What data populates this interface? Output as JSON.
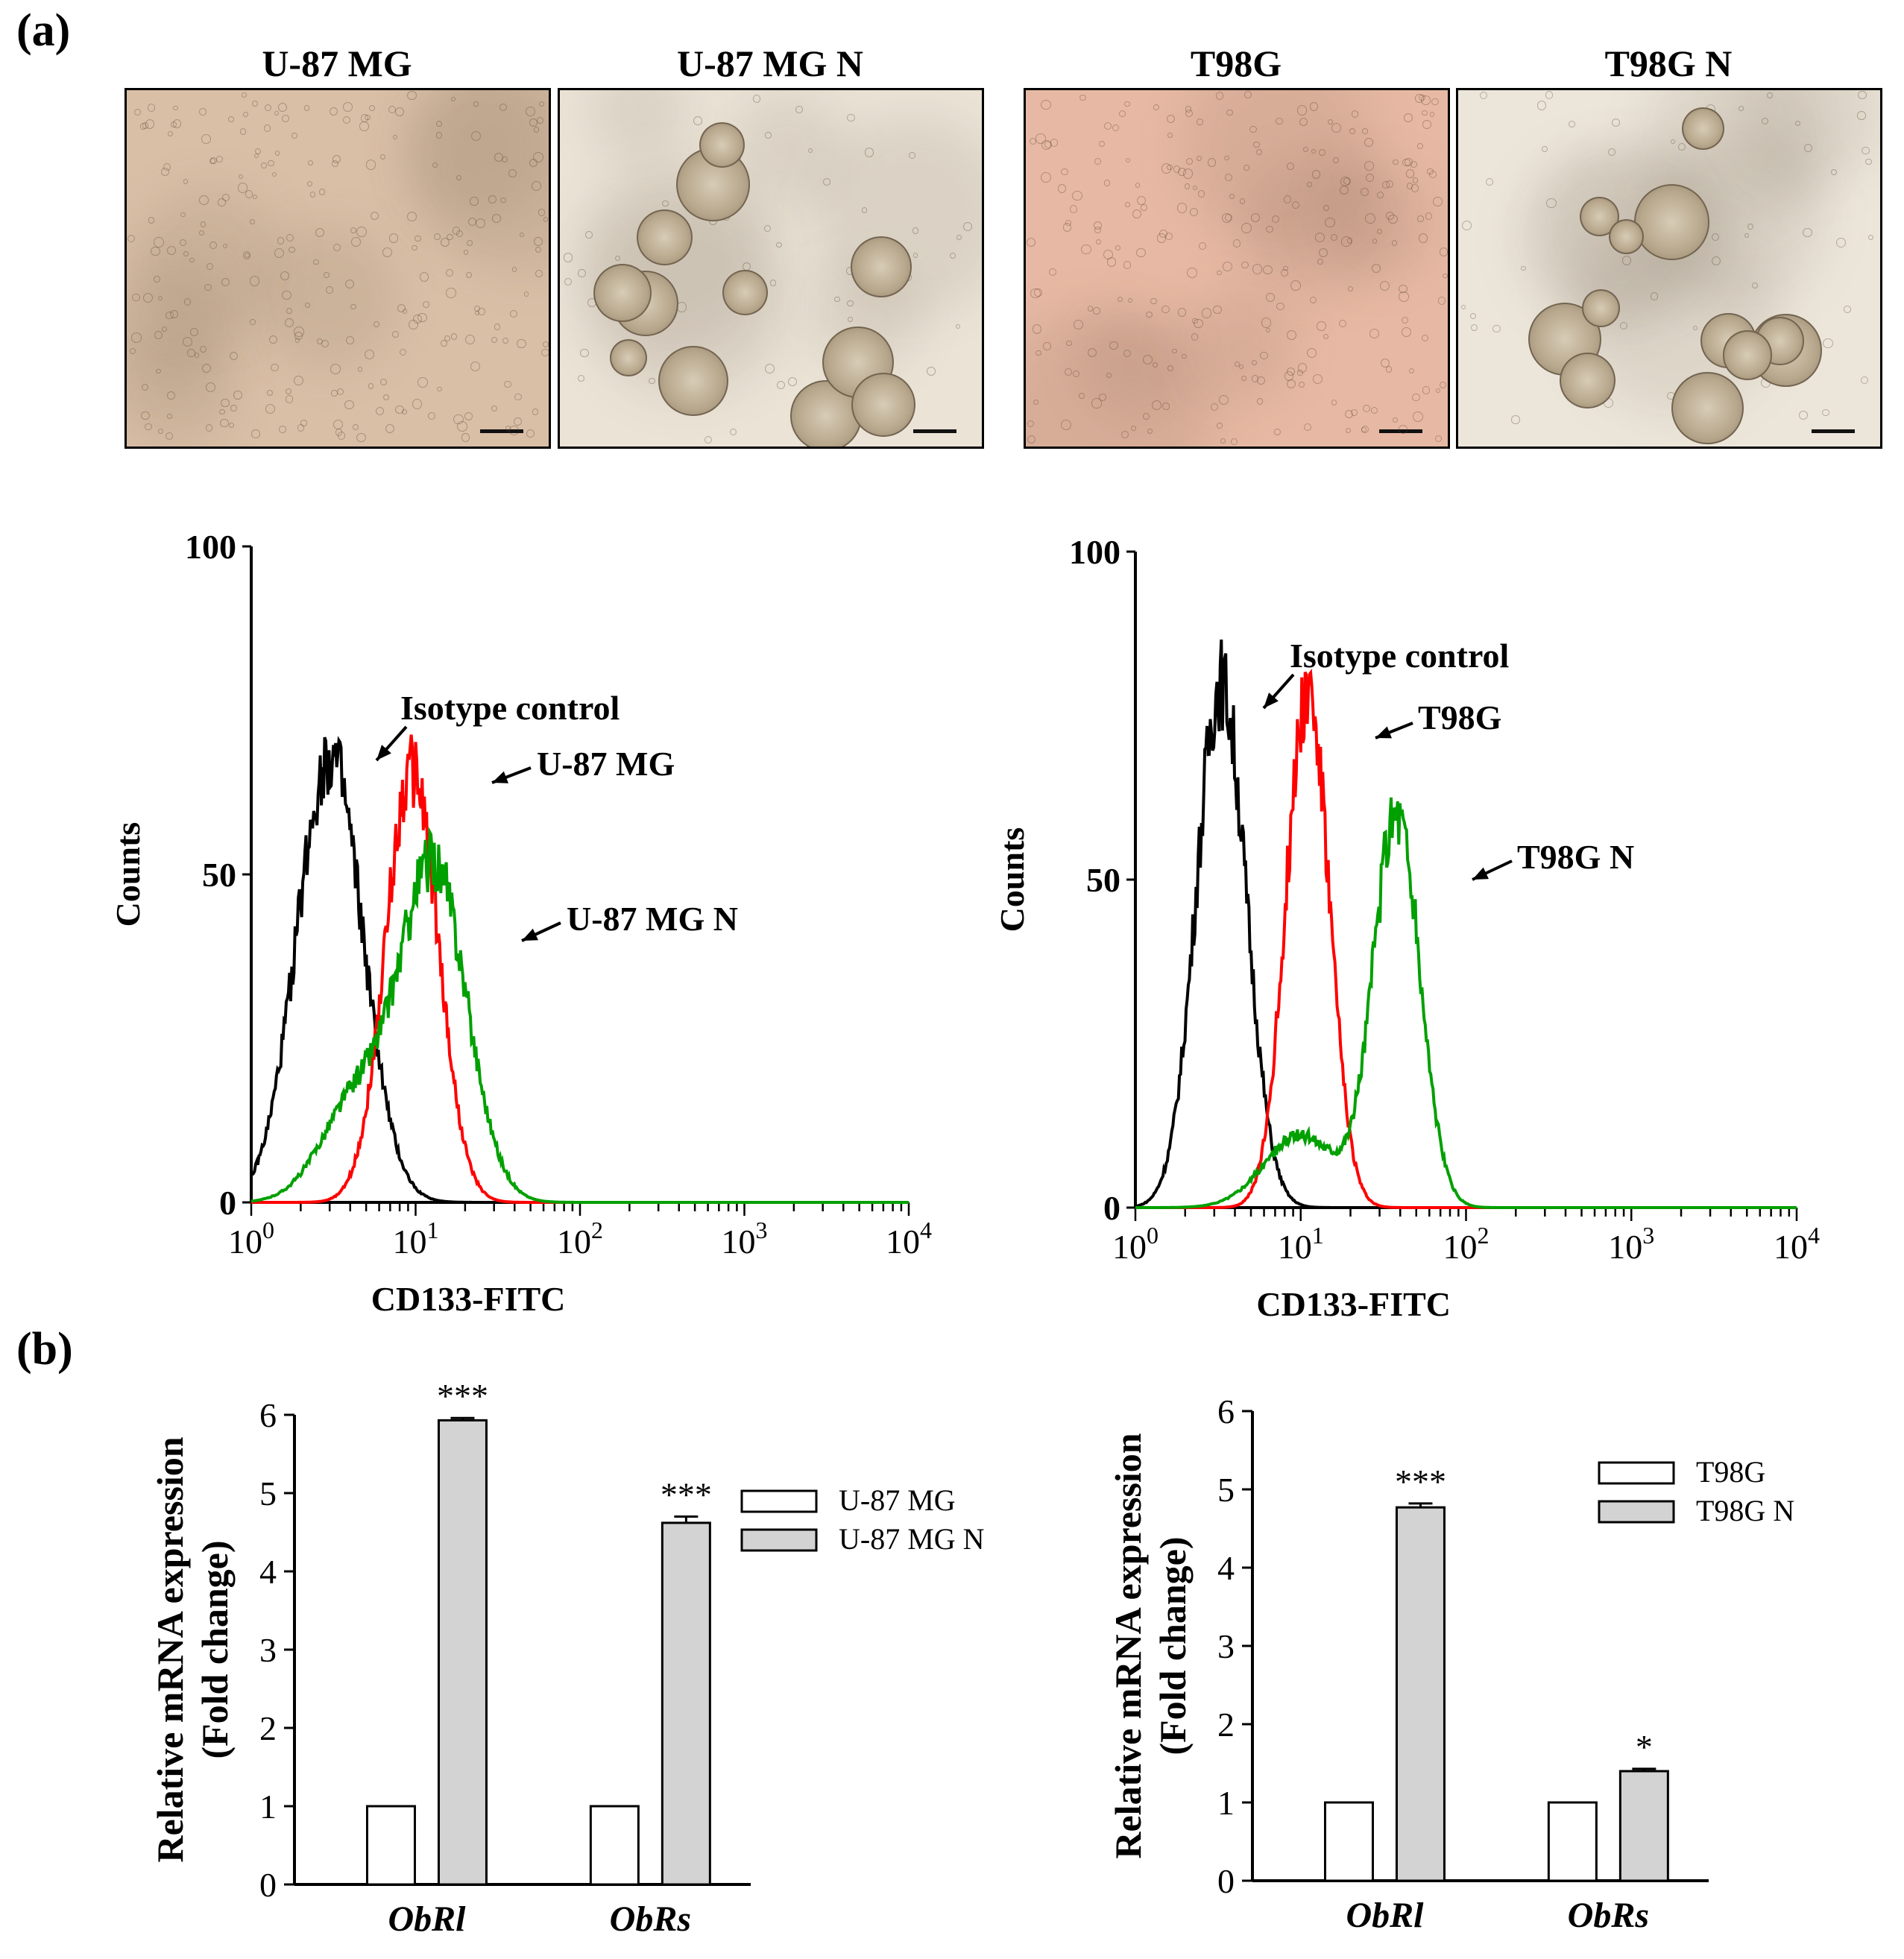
{
  "panels": {
    "a": "(a)",
    "b": "(b)"
  },
  "photos": [
    {
      "title": "U-87 MG",
      "tone": "#d9bfa6",
      "spheres": false
    },
    {
      "title": "U-87 MG  N",
      "tone": "#eae3d6",
      "spheres": true
    },
    {
      "title": "T98G",
      "tone": "#e7b9a4",
      "spheres": false
    },
    {
      "title": "T98G  N",
      "tone": "#ece6da",
      "spheres": true
    }
  ],
  "chart_data": [
    {
      "type": "line",
      "id": "flow-u87",
      "xlabel": "CD133-FITC",
      "ylabel": "Counts",
      "xscale": "log",
      "xlim": [
        1,
        10000
      ],
      "ylim": [
        0,
        100
      ],
      "x_ticks": [
        "10^0",
        "10^1",
        "10^2",
        "10^3",
        "10^4"
      ],
      "y_ticks": [
        "0",
        "50",
        "100"
      ],
      "series": [
        {
          "name": "Isotype  control",
          "color": "#000000",
          "peak_x": 3.0,
          "peak_y": 68,
          "spread": 0.2
        },
        {
          "name": "U-87 MG",
          "color": "#ff0000",
          "peak_x": 9.5,
          "peak_y": 66,
          "spread": 0.16
        },
        {
          "name": "U-87 MG  N",
          "color": "#00a000",
          "peak_x": 13,
          "peak_y": 50,
          "spread": 0.2,
          "shoulder_x": 4.5,
          "shoulder_y": 16
        }
      ]
    },
    {
      "type": "line",
      "id": "flow-t98g",
      "xlabel": "CD133-FITC",
      "ylabel": "Counts",
      "xscale": "log",
      "xlim": [
        1,
        10000
      ],
      "ylim": [
        0,
        100
      ],
      "x_ticks": [
        "10^0",
        "10^1",
        "10^2",
        "10^3",
        "10^4"
      ],
      "y_ticks": [
        "0",
        "50",
        "100"
      ],
      "series": [
        {
          "name": "Isotype  control",
          "color": "#000000",
          "peak_x": 3.3,
          "peak_y": 80,
          "spread": 0.15
        },
        {
          "name": "T98G",
          "color": "#ff0000",
          "peak_x": 11,
          "peak_y": 79,
          "spread": 0.13
        },
        {
          "name": "T98G  N",
          "color": "#00a000",
          "peak_x": 38,
          "peak_y": 60,
          "spread": 0.14,
          "shoulder_x": 10,
          "shoulder_y": 11
        }
      ]
    },
    {
      "type": "bar",
      "id": "mrna-u87",
      "categories": [
        "ObRl",
        "ObRs"
      ],
      "ylabel": "Relative mRNA expression",
      "ylabel2": "(Fold change)",
      "ylim": [
        0,
        6
      ],
      "y_ticks": [
        "0",
        "1",
        "2",
        "3",
        "4",
        "5",
        "6"
      ],
      "series": [
        {
          "name": "U-87 MG",
          "values": [
            1,
            1
          ],
          "errors": [
            0,
            0
          ],
          "fill": "#ffffff"
        },
        {
          "name": "U-87 MG N",
          "values": [
            5.93,
            4.62
          ],
          "errors": [
            0.03,
            0.08
          ],
          "fill": "#d3d3d3"
        }
      ],
      "annotations": [
        "***",
        "***"
      ]
    },
    {
      "type": "bar",
      "id": "mrna-t98g",
      "categories": [
        "ObRl",
        "ObRs"
      ],
      "ylabel": "Relative mRNA expression",
      "ylabel2": "(Fold change)",
      "ylim": [
        0,
        6
      ],
      "y_ticks": [
        "0",
        "1",
        "2",
        "3",
        "4",
        "5",
        "6"
      ],
      "series": [
        {
          "name": "T98G",
          "values": [
            1,
            1
          ],
          "errors": [
            0,
            0
          ],
          "fill": "#ffffff"
        },
        {
          "name": "T98G N",
          "values": [
            4.77,
            1.4
          ],
          "errors": [
            0.05,
            0.03
          ],
          "fill": "#d3d3d3"
        }
      ],
      "annotations": [
        "***",
        "*"
      ]
    }
  ]
}
